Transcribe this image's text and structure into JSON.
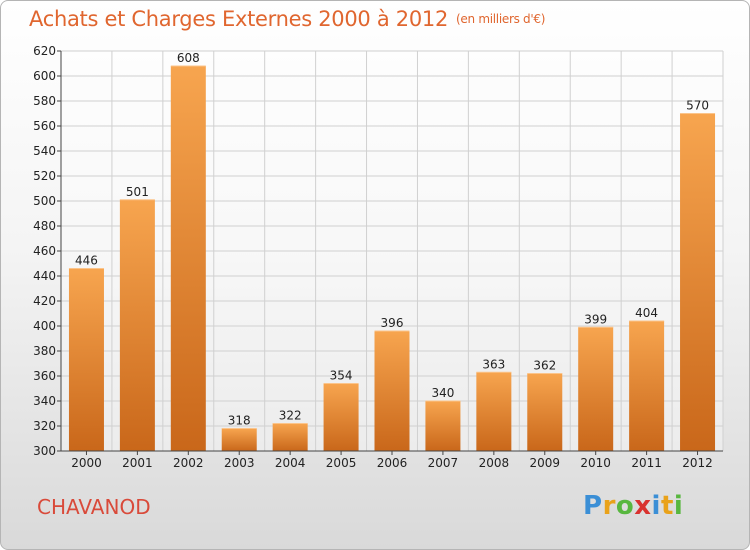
{
  "title": "Achats et Charges Externes 2000 à 2012",
  "unit": "(en milliers d'€)",
  "commune": "CHAVANOD",
  "brand": {
    "letters": [
      "P",
      "r",
      "o",
      "x",
      "i",
      "t",
      "i"
    ],
    "colors": [
      "#3b8fd6",
      "#e9a21a",
      "#58b73f",
      "#d9322f",
      "#3b8fd6",
      "#e9a21a",
      "#58b73f"
    ]
  },
  "chart_data": {
    "type": "bar",
    "title": "Achats et Charges Externes 2000 à 2012",
    "subtitle": "(en milliers d'€)",
    "categories": [
      "2000",
      "2001",
      "2002",
      "2003",
      "2004",
      "2005",
      "2006",
      "2007",
      "2008",
      "2009",
      "2010",
      "2011",
      "2012"
    ],
    "values": [
      446,
      501,
      608,
      318,
      322,
      354,
      396,
      340,
      363,
      362,
      399,
      404,
      570
    ],
    "ylim": [
      300,
      620
    ],
    "yticks": [
      300,
      320,
      340,
      360,
      380,
      400,
      420,
      440,
      460,
      480,
      500,
      520,
      540,
      560,
      580,
      600,
      620
    ],
    "grid": true,
    "colors": {
      "bar_light": "#f7a54f",
      "bar_dark": "#c9671a",
      "grid": "#d0d0d0"
    }
  }
}
